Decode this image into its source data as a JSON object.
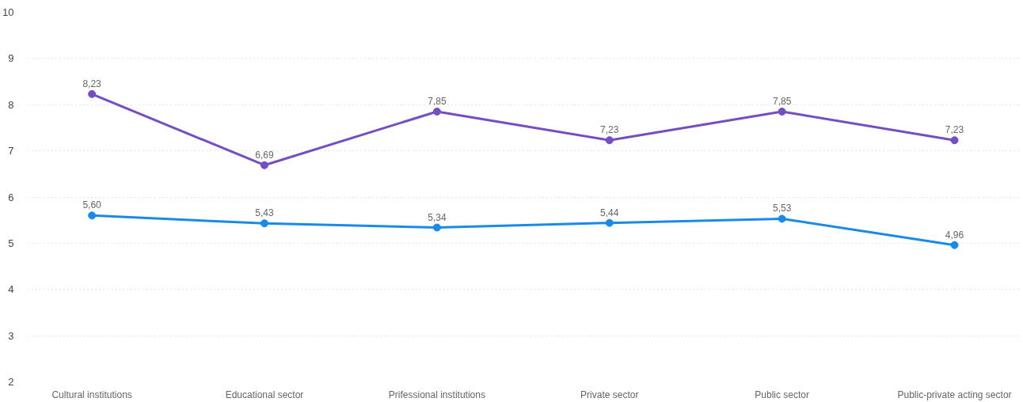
{
  "chart_data": {
    "type": "line",
    "categories": [
      "Cultural institutions",
      "Educational sector",
      "Prifessional institutions",
      "Private sector",
      "Public sector",
      "Public-private acting sector"
    ],
    "series": [
      {
        "color": "#744ec2",
        "values": [
          8.23,
          6.69,
          7.85,
          7.23,
          7.85,
          7.23
        ],
        "value_labels": [
          "8,23",
          "6,69",
          "7,85",
          "7,23",
          "7,85",
          "7,23"
        ]
      },
      {
        "color": "#1a8ae8",
        "values": [
          5.6,
          5.43,
          5.34,
          5.44,
          5.53,
          4.96
        ],
        "value_labels": [
          "5,60",
          "5,43",
          "5,34",
          "5,44",
          "5,53",
          "4,96"
        ]
      }
    ],
    "ylim": [
      2,
      10
    ],
    "yticks": [
      2,
      3,
      4,
      5,
      6,
      7,
      8,
      9,
      10
    ],
    "grid": "y",
    "marker": "circle",
    "line_style": "solid"
  }
}
